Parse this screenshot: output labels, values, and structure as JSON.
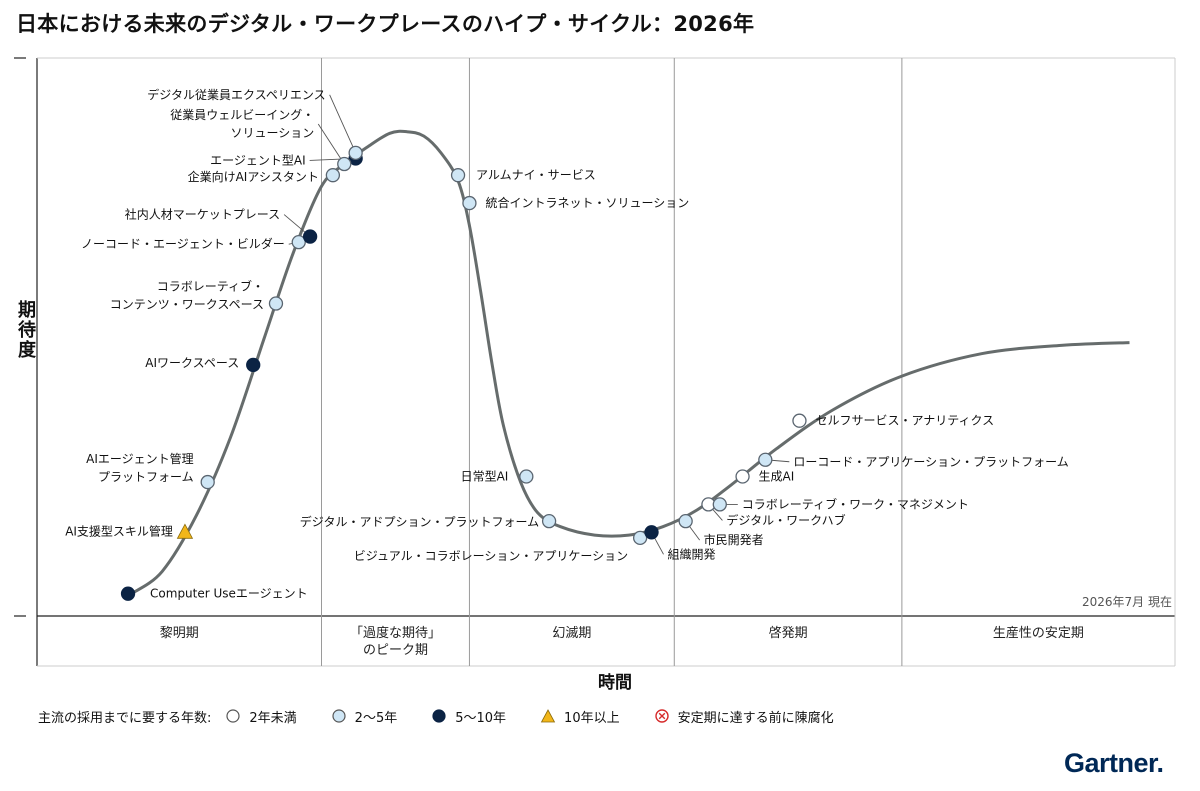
{
  "title": "日本における未来のデジタル・ワークプレースのハイプ・サイクル：2026年",
  "y_axis_label": "期待度",
  "x_axis_label": "時間",
  "as_of": "2026年7月 現在",
  "legend": {
    "title": "主流の採用までに要する年数:",
    "items": [
      {
        "label": "2年未満",
        "symbol": "circle-white"
      },
      {
        "label": "2～5年",
        "symbol": "circle-light-blue"
      },
      {
        "label": "5～10年",
        "symbol": "circle-navy"
      },
      {
        "label": "10年以上",
        "symbol": "triangle-yellow"
      },
      {
        "label": "安定期に達する前に陳腐化",
        "symbol": "circle-cross-red"
      }
    ]
  },
  "logo": "Gartner",
  "colors": {
    "white": "#ffffff",
    "light_blue": "#cfe6f5",
    "navy": "#0b2344",
    "yellow": "#f2b619",
    "red": "#d62b2b",
    "curve": "#666c6c"
  },
  "chart_data": {
    "type": "scatter",
    "title": "日本における未来のデジタル・ワークプレースのハイプ・サイクル：2026年",
    "xlabel": "時間",
    "ylabel": "期待度",
    "phases": [
      {
        "label": "黎明期",
        "x_end": 0.25
      },
      {
        "label": "「過度な期待」\nのピーク期",
        "x_end": 0.38
      },
      {
        "label": "幻滅期",
        "x_end": 0.56
      },
      {
        "label": "啓発期",
        "x_end": 0.76
      },
      {
        "label": "生産性の安定期",
        "x_end": 1.0
      }
    ],
    "points": [
      {
        "name": "Computer Useエージェント",
        "category": "5～10年",
        "x": 0.08,
        "y": 0.04
      },
      {
        "name": "AI支援型スキル管理",
        "category": "10年以上",
        "x": 0.13,
        "y": 0.15
      },
      {
        "name": "AIエージェント管理\nプラットフォーム",
        "category": "2～5年",
        "x": 0.15,
        "y": 0.24
      },
      {
        "name": "AIワークスペース",
        "category": "5～10年",
        "x": 0.19,
        "y": 0.45
      },
      {
        "name": "コラボレーティブ・\nコンテンツ・ワークスペース",
        "category": "2～5年",
        "x": 0.21,
        "y": 0.56
      },
      {
        "name": "ノーコード・エージェント・ビルダー",
        "category": "2～5年",
        "x": 0.23,
        "y": 0.67
      },
      {
        "name": "社内人材マーケットプレース",
        "category": "5～10年",
        "x": 0.24,
        "y": 0.68
      },
      {
        "name": "企業向けAIアシスタント",
        "category": "2～5年",
        "x": 0.26,
        "y": 0.79
      },
      {
        "name": "エージェント型AI",
        "category": "5～10年",
        "x": 0.28,
        "y": 0.82
      },
      {
        "name": "従業員ウェルビーイング・\nソリューション",
        "category": "2～5年",
        "x": 0.27,
        "y": 0.81
      },
      {
        "name": "デジタル従業員エクスペリエンス",
        "category": "2～5年",
        "x": 0.28,
        "y": 0.83
      },
      {
        "name": "アルムナイ・サービス",
        "category": "2～5年",
        "x": 0.37,
        "y": 0.79
      },
      {
        "name": "統合イントラネット・ソリューション",
        "category": "2～5年",
        "x": 0.38,
        "y": 0.74
      },
      {
        "name": "日常型AI",
        "category": "2～5年",
        "x": 0.43,
        "y": 0.25
      },
      {
        "name": "デジタル・アドプション・プラットフォーム",
        "category": "2～5年",
        "x": 0.45,
        "y": 0.17
      },
      {
        "name": "ビジュアル・コラボレーション・アプリケーション",
        "category": "2～5年",
        "x": 0.53,
        "y": 0.14
      },
      {
        "name": "組織開発",
        "category": "5～10年",
        "x": 0.54,
        "y": 0.15
      },
      {
        "name": "市民開発者",
        "category": "2～5年",
        "x": 0.57,
        "y": 0.17
      },
      {
        "name": "デジタル・ワークハブ",
        "category": "2年未満",
        "x": 0.59,
        "y": 0.2
      },
      {
        "name": "コラボレーティブ・ワーク・マネジメント",
        "category": "2～5年",
        "x": 0.6,
        "y": 0.2
      },
      {
        "name": "生成AI",
        "category": "2年未満",
        "x": 0.62,
        "y": 0.25
      },
      {
        "name": "ローコード・アプリケーション・プラットフォーム",
        "category": "2～5年",
        "x": 0.64,
        "y": 0.28
      },
      {
        "name": "セルフサービス・アナリティクス",
        "category": "2年未満",
        "x": 0.67,
        "y": 0.35
      }
    ]
  }
}
